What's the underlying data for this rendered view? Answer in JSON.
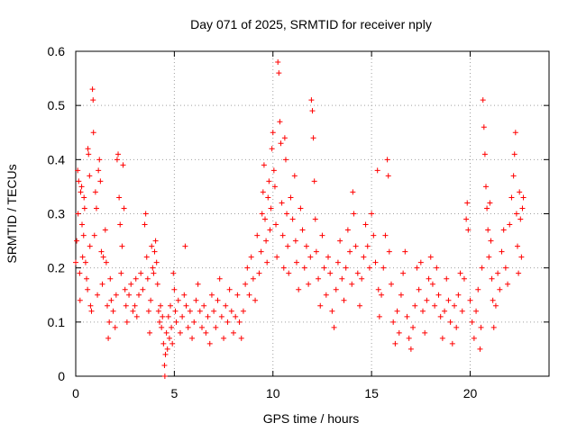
{
  "chart_data": {
    "type": "scatter",
    "title": "Day 071 of 2025, SRMTID for receiver nply",
    "xlabel": "GPS time / hours",
    "ylabel": "SRMTID / TECUs",
    "xlim": [
      0,
      24
    ],
    "ylim": [
      0,
      0.6
    ],
    "x_ticks": [
      0,
      5,
      10,
      15,
      20
    ],
    "x_tick_labels": [
      "0",
      "5",
      "10",
      "15",
      "20"
    ],
    "y_ticks": [
      0,
      0.1,
      0.2,
      0.3,
      0.4,
      0.5,
      0.6
    ],
    "y_tick_labels": [
      "0",
      "0.1",
      "0.2",
      "0.3",
      "0.4",
      "0.5",
      "0.6"
    ],
    "grid": true,
    "marker": "+",
    "marker_color": "#ff0000",
    "series": [
      {
        "name": "SRMTID",
        "points": [
          [
            0.0,
            0.21
          ],
          [
            0.05,
            0.25
          ],
          [
            0.1,
            0.38
          ],
          [
            0.12,
            0.3
          ],
          [
            0.15,
            0.36
          ],
          [
            0.2,
            0.19
          ],
          [
            0.22,
            0.14
          ],
          [
            0.25,
            0.34
          ],
          [
            0.3,
            0.35
          ],
          [
            0.32,
            0.28
          ],
          [
            0.35,
            0.22
          ],
          [
            0.4,
            0.26
          ],
          [
            0.42,
            0.33
          ],
          [
            0.45,
            0.31
          ],
          [
            0.5,
            0.21
          ],
          [
            0.55,
            0.18
          ],
          [
            0.6,
            0.16
          ],
          [
            0.62,
            0.42
          ],
          [
            0.65,
            0.41
          ],
          [
            0.7,
            0.37
          ],
          [
            0.72,
            0.24
          ],
          [
            0.75,
            0.13
          ],
          [
            0.8,
            0.12
          ],
          [
            0.85,
            0.53
          ],
          [
            0.88,
            0.51
          ],
          [
            0.9,
            0.45
          ],
          [
            0.95,
            0.26
          ],
          [
            1.0,
            0.34
          ],
          [
            1.05,
            0.31
          ],
          [
            1.1,
            0.15
          ],
          [
            1.15,
            0.38
          ],
          [
            1.2,
            0.4
          ],
          [
            1.25,
            0.36
          ],
          [
            1.3,
            0.23
          ],
          [
            1.35,
            0.17
          ],
          [
            1.4,
            0.22
          ],
          [
            1.5,
            0.27
          ],
          [
            1.55,
            0.21
          ],
          [
            1.6,
            0.13
          ],
          [
            1.65,
            0.07
          ],
          [
            1.7,
            0.1
          ],
          [
            1.75,
            0.18
          ],
          [
            1.8,
            0.14
          ],
          [
            1.9,
            0.12
          ],
          [
            2.0,
            0.09
          ],
          [
            2.05,
            0.15
          ],
          [
            2.1,
            0.4
          ],
          [
            2.15,
            0.41
          ],
          [
            2.2,
            0.33
          ],
          [
            2.25,
            0.28
          ],
          [
            2.3,
            0.19
          ],
          [
            2.35,
            0.24
          ],
          [
            2.4,
            0.39
          ],
          [
            2.45,
            0.31
          ],
          [
            2.5,
            0.16
          ],
          [
            2.55,
            0.13
          ],
          [
            2.6,
            0.1
          ],
          [
            2.7,
            0.15
          ],
          [
            2.8,
            0.17
          ],
          [
            2.9,
            0.12
          ],
          [
            3.0,
            0.13
          ],
          [
            3.05,
            0.18
          ],
          [
            3.1,
            0.11
          ],
          [
            3.2,
            0.15
          ],
          [
            3.3,
            0.19
          ],
          [
            3.4,
            0.16
          ],
          [
            3.5,
            0.28
          ],
          [
            3.55,
            0.3
          ],
          [
            3.6,
            0.22
          ],
          [
            3.65,
            0.18
          ],
          [
            3.7,
            0.12
          ],
          [
            3.75,
            0.08
          ],
          [
            3.8,
            0.14
          ],
          [
            3.85,
            0.24
          ],
          [
            3.9,
            0.2
          ],
          [
            3.95,
            0.19
          ],
          [
            4.0,
            0.23
          ],
          [
            4.05,
            0.25
          ],
          [
            4.1,
            0.21
          ],
          [
            4.15,
            0.17
          ],
          [
            4.2,
            0.12
          ],
          [
            4.25,
            0.1
          ],
          [
            4.3,
            0.13
          ],
          [
            4.35,
            0.09
          ],
          [
            4.4,
            0.11
          ],
          [
            4.45,
            0.06
          ],
          [
            4.5,
            0.02
          ],
          [
            4.52,
            0.0
          ],
          [
            4.55,
            0.04
          ],
          [
            4.6,
            0.08
          ],
          [
            4.65,
            0.05
          ],
          [
            4.7,
            0.11
          ],
          [
            4.75,
            0.07
          ],
          [
            4.8,
            0.13
          ],
          [
            4.85,
            0.09
          ],
          [
            4.9,
            0.06
          ],
          [
            4.95,
            0.19
          ],
          [
            5.0,
            0.16
          ],
          [
            5.05,
            0.12
          ],
          [
            5.1,
            0.1
          ],
          [
            5.2,
            0.14
          ],
          [
            5.3,
            0.08
          ],
          [
            5.4,
            0.11
          ],
          [
            5.5,
            0.15
          ],
          [
            5.55,
            0.24
          ],
          [
            5.6,
            0.13
          ],
          [
            5.7,
            0.09
          ],
          [
            5.8,
            0.12
          ],
          [
            5.9,
            0.07
          ],
          [
            6.0,
            0.1
          ],
          [
            6.1,
            0.14
          ],
          [
            6.2,
            0.17
          ],
          [
            6.3,
            0.12
          ],
          [
            6.4,
            0.09
          ],
          [
            6.5,
            0.13
          ],
          [
            6.6,
            0.08
          ],
          [
            6.7,
            0.11
          ],
          [
            6.8,
            0.06
          ],
          [
            6.9,
            0.15
          ],
          [
            7.0,
            0.12
          ],
          [
            7.1,
            0.09
          ],
          [
            7.2,
            0.14
          ],
          [
            7.3,
            0.18
          ],
          [
            7.4,
            0.11
          ],
          [
            7.5,
            0.07
          ],
          [
            7.6,
            0.13
          ],
          [
            7.7,
            0.1
          ],
          [
            7.8,
            0.16
          ],
          [
            7.9,
            0.12
          ],
          [
            8.0,
            0.08
          ],
          [
            8.1,
            0.11
          ],
          [
            8.2,
            0.15
          ],
          [
            8.3,
            0.1
          ],
          [
            8.4,
            0.07
          ],
          [
            8.5,
            0.12
          ],
          [
            8.6,
            0.17
          ],
          [
            8.7,
            0.2
          ],
          [
            8.8,
            0.15
          ],
          [
            8.9,
            0.22
          ],
          [
            9.0,
            0.18
          ],
          [
            9.1,
            0.14
          ],
          [
            9.2,
            0.26
          ],
          [
            9.3,
            0.19
          ],
          [
            9.4,
            0.23
          ],
          [
            9.45,
            0.3
          ],
          [
            9.5,
            0.34
          ],
          [
            9.55,
            0.39
          ],
          [
            9.6,
            0.29
          ],
          [
            9.65,
            0.25
          ],
          [
            9.7,
            0.21
          ],
          [
            9.75,
            0.33
          ],
          [
            9.8,
            0.36
          ],
          [
            9.85,
            0.27
          ],
          [
            9.9,
            0.31
          ],
          [
            9.95,
            0.42
          ],
          [
            10.0,
            0.45
          ],
          [
            10.05,
            0.38
          ],
          [
            10.1,
            0.35
          ],
          [
            10.15,
            0.28
          ],
          [
            10.2,
            0.22
          ],
          [
            10.25,
            0.58
          ],
          [
            10.3,
            0.56
          ],
          [
            10.35,
            0.47
          ],
          [
            10.4,
            0.43
          ],
          [
            10.45,
            0.32
          ],
          [
            10.5,
            0.26
          ],
          [
            10.55,
            0.2
          ],
          [
            10.6,
            0.44
          ],
          [
            10.65,
            0.4
          ],
          [
            10.7,
            0.3
          ],
          [
            10.75,
            0.24
          ],
          [
            10.8,
            0.19
          ],
          [
            10.9,
            0.33
          ],
          [
            11.0,
            0.29
          ],
          [
            11.1,
            0.37
          ],
          [
            11.15,
            0.25
          ],
          [
            11.2,
            0.21
          ],
          [
            11.3,
            0.16
          ],
          [
            11.4,
            0.31
          ],
          [
            11.5,
            0.27
          ],
          [
            11.6,
            0.2
          ],
          [
            11.7,
            0.24
          ],
          [
            11.8,
            0.17
          ],
          [
            11.9,
            0.22
          ],
          [
            11.95,
            0.51
          ],
          [
            12.0,
            0.49
          ],
          [
            12.05,
            0.44
          ],
          [
            12.1,
            0.36
          ],
          [
            12.15,
            0.29
          ],
          [
            12.2,
            0.23
          ],
          [
            12.3,
            0.18
          ],
          [
            12.4,
            0.13
          ],
          [
            12.5,
            0.26
          ],
          [
            12.6,
            0.2
          ],
          [
            12.7,
            0.15
          ],
          [
            12.8,
            0.22
          ],
          [
            12.9,
            0.19
          ],
          [
            13.0,
            0.12
          ],
          [
            13.1,
            0.09
          ],
          [
            13.2,
            0.16
          ],
          [
            13.3,
            0.21
          ],
          [
            13.4,
            0.25
          ],
          [
            13.5,
            0.18
          ],
          [
            13.6,
            0.14
          ],
          [
            13.7,
            0.2
          ],
          [
            13.8,
            0.27
          ],
          [
            13.9,
            0.23
          ],
          [
            14.0,
            0.17
          ],
          [
            14.05,
            0.34
          ],
          [
            14.1,
            0.3
          ],
          [
            14.2,
            0.24
          ],
          [
            14.3,
            0.19
          ],
          [
            14.4,
            0.13
          ],
          [
            14.5,
            0.18
          ],
          [
            14.6,
            0.22
          ],
          [
            14.7,
            0.28
          ],
          [
            14.8,
            0.24
          ],
          [
            14.9,
            0.2
          ],
          [
            15.0,
            0.3
          ],
          [
            15.1,
            0.26
          ],
          [
            15.2,
            0.21
          ],
          [
            15.3,
            0.38
          ],
          [
            15.35,
            0.16
          ],
          [
            15.4,
            0.11
          ],
          [
            15.5,
            0.15
          ],
          [
            15.6,
            0.2
          ],
          [
            15.7,
            0.26
          ],
          [
            15.8,
            0.4
          ],
          [
            15.85,
            0.37
          ],
          [
            15.9,
            0.23
          ],
          [
            16.0,
            0.17
          ],
          [
            16.1,
            0.1
          ],
          [
            16.2,
            0.06
          ],
          [
            16.3,
            0.12
          ],
          [
            16.4,
            0.08
          ],
          [
            16.5,
            0.15
          ],
          [
            16.6,
            0.19
          ],
          [
            16.7,
            0.23
          ],
          [
            16.8,
            0.11
          ],
          [
            16.9,
            0.07
          ],
          [
            17.0,
            0.05
          ],
          [
            17.1,
            0.09
          ],
          [
            17.2,
            0.13
          ],
          [
            17.3,
            0.2
          ],
          [
            17.4,
            0.16
          ],
          [
            17.5,
            0.21
          ],
          [
            17.6,
            0.12
          ],
          [
            17.7,
            0.08
          ],
          [
            17.8,
            0.14
          ],
          [
            17.9,
            0.18
          ],
          [
            18.0,
            0.22
          ],
          [
            18.1,
            0.17
          ],
          [
            18.2,
            0.13
          ],
          [
            18.3,
            0.2
          ],
          [
            18.4,
            0.15
          ],
          [
            18.5,
            0.11
          ],
          [
            18.6,
            0.07
          ],
          [
            18.7,
            0.12
          ],
          [
            18.8,
            0.18
          ],
          [
            18.9,
            0.14
          ],
          [
            19.0,
            0.1
          ],
          [
            19.1,
            0.06
          ],
          [
            19.2,
            0.13
          ],
          [
            19.3,
            0.09
          ],
          [
            19.4,
            0.15
          ],
          [
            19.5,
            0.19
          ],
          [
            19.6,
            0.12
          ],
          [
            19.7,
            0.18
          ],
          [
            19.8,
            0.29
          ],
          [
            19.85,
            0.32
          ],
          [
            19.9,
            0.27
          ],
          [
            20.0,
            0.14
          ],
          [
            20.1,
            0.1
          ],
          [
            20.2,
            0.07
          ],
          [
            20.3,
            0.12
          ],
          [
            20.4,
            0.16
          ],
          [
            20.5,
            0.05
          ],
          [
            20.55,
            0.09
          ],
          [
            20.6,
            0.2
          ],
          [
            20.65,
            0.51
          ],
          [
            20.7,
            0.46
          ],
          [
            20.75,
            0.41
          ],
          [
            20.8,
            0.35
          ],
          [
            20.85,
            0.31
          ],
          [
            20.9,
            0.27
          ],
          [
            20.95,
            0.22
          ],
          [
            21.0,
            0.32
          ],
          [
            21.05,
            0.25
          ],
          [
            21.1,
            0.18
          ],
          [
            21.15,
            0.14
          ],
          [
            21.2,
            0.09
          ],
          [
            21.3,
            0.13
          ],
          [
            21.4,
            0.19
          ],
          [
            21.5,
            0.16
          ],
          [
            21.6,
            0.23
          ],
          [
            21.7,
            0.27
          ],
          [
            21.8,
            0.2
          ],
          [
            21.9,
            0.17
          ],
          [
            22.0,
            0.28
          ],
          [
            22.1,
            0.33
          ],
          [
            22.2,
            0.37
          ],
          [
            22.25,
            0.41
          ],
          [
            22.3,
            0.45
          ],
          [
            22.35,
            0.3
          ],
          [
            22.4,
            0.24
          ],
          [
            22.45,
            0.19
          ],
          [
            22.5,
            0.34
          ],
          [
            22.55,
            0.29
          ],
          [
            22.6,
            0.22
          ],
          [
            22.65,
            0.31
          ],
          [
            22.7,
            0.33
          ]
        ]
      }
    ]
  }
}
